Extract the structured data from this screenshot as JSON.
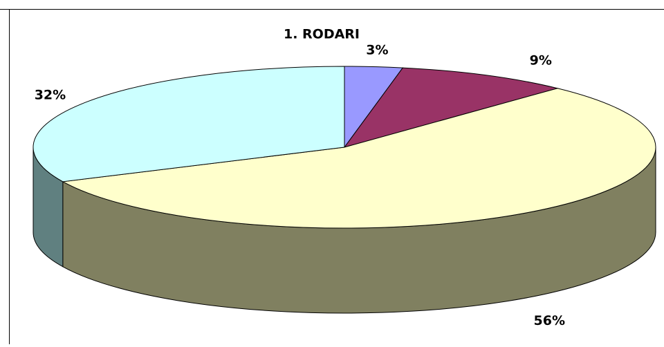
{
  "chart_data": {
    "type": "pie",
    "title": "1. RODARI",
    "values": [
      3,
      9,
      56,
      32
    ],
    "value_labels": [
      "3%",
      "9%",
      "56%",
      "32%"
    ],
    "colors": [
      "#9999ff",
      "#993366",
      "#ffffcc",
      "#ccffff"
    ],
    "side_colors": [
      "#6b6bb3",
      "#6b2447",
      "#808060",
      "#608080"
    ],
    "three_d": true
  }
}
